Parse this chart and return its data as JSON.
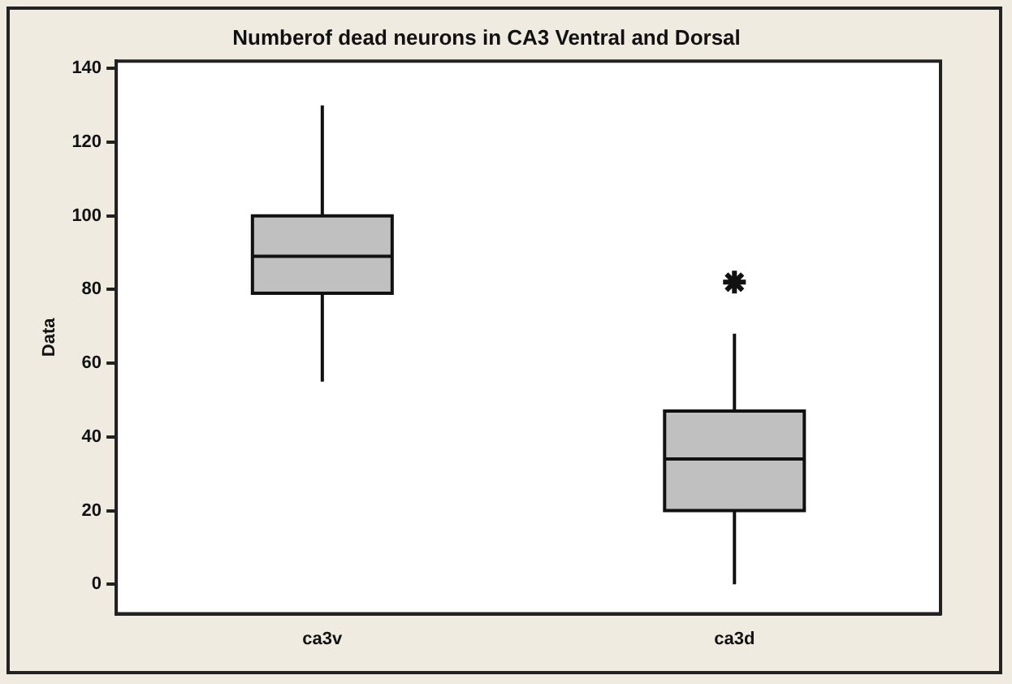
{
  "chart_data": {
    "type": "box",
    "title": "Numberof dead neurons in CA3 Ventral and Dorsal",
    "ylabel": "Data",
    "categories": [
      "ca3v",
      "ca3d"
    ],
    "boxes": [
      {
        "low": 55,
        "q1": 79,
        "median": 89,
        "q3": 100,
        "high": 130
      },
      {
        "low": 0,
        "q1": 20,
        "median": 34,
        "q3": 47,
        "high": 68,
        "outliers": [
          82
        ]
      }
    ],
    "color": "#c0c0c0",
    "ylim": [
      -8,
      142
    ],
    "yticks": [
      0,
      20,
      40,
      60,
      80,
      100,
      120,
      140
    ],
    "grid": false,
    "legend": false
  }
}
